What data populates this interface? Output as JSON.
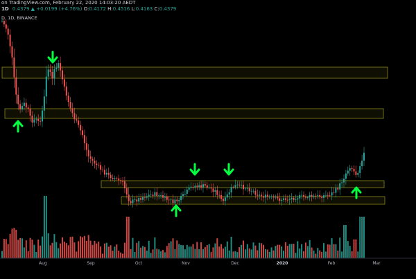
{
  "header": {
    "source_line": "on TradingView.com, February 22, 2020 14:03:20 AEDT",
    "timeframe": "1D",
    "price": "0.4379",
    "change": "▲ +0.0199 (+4.76%)",
    "open_label": "O:",
    "open_value": "0.4172",
    "high_label": "H:",
    "high_value": "0.4516",
    "low_label": "L:",
    "low_value": "0.4163",
    "close_label": "C:",
    "close_value": "0.4379",
    "symbol_line": "D, 1D, BINANCE"
  },
  "colors": {
    "background": "#000000",
    "up": "#26a69a",
    "down": "#ef5350",
    "zone_border": "#8c8a1c",
    "zone_fill": "#1c1c08",
    "arrow": "#00ff40",
    "axis_text": "#b2b5be"
  },
  "x_axis_labels": [
    {
      "text": "Aug",
      "bold": false
    },
    {
      "text": "Sep",
      "bold": false
    },
    {
      "text": "Oct",
      "bold": false
    },
    {
      "text": "Nov",
      "bold": false
    },
    {
      "text": "Dec",
      "bold": false
    },
    {
      "text": "2020",
      "bold": true
    },
    {
      "text": "Feb",
      "bold": false
    },
    {
      "text": "Mar",
      "bold": false
    }
  ],
  "annotations": {
    "zones": [
      "resistance-zone-top",
      "resistance-zone-upper",
      "support-zone-middle",
      "support-zone-lower"
    ],
    "arrows": [
      "down",
      "up",
      "down",
      "down",
      "up",
      "up"
    ]
  },
  "chart_data": {
    "type": "candlestick",
    "title": "",
    "xlabel": "",
    "ylabel": "",
    "exchange": "BINANCE",
    "timeframe": "1D",
    "x_ticks": [
      "Aug",
      "Sep",
      "Oct",
      "Nov",
      "Dec",
      "2020",
      "Feb",
      "Mar"
    ],
    "volume_shown": true,
    "grid": false
  }
}
